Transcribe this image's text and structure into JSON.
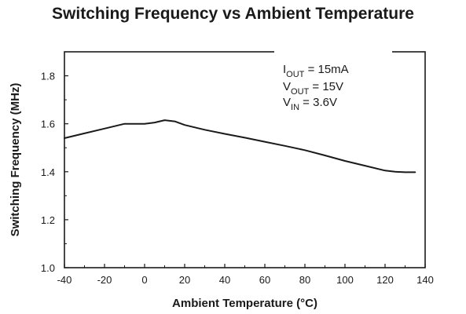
{
  "chart_data": {
    "type": "line",
    "title": "Switching Frequency vs Ambient Temperature",
    "xlabel": "Ambient Temperature (°C)",
    "ylabel": "Switching Frequency (MHz)",
    "xlim": [
      -40,
      140
    ],
    "ylim": [
      1.0,
      1.9
    ],
    "xticks": [
      -40,
      -20,
      0,
      20,
      40,
      60,
      80,
      100,
      120,
      140
    ],
    "yticks": [
      1.0,
      1.2,
      1.4,
      1.6,
      1.8
    ],
    "xtick_labels": [
      "-40",
      "-20",
      "0",
      "20",
      "40",
      "60",
      "80",
      "100",
      "120",
      "140"
    ],
    "ytick_labels": [
      "1.0",
      "1.2",
      "1.4",
      "1.6",
      "1.8"
    ],
    "grid": false,
    "series": [
      {
        "x": [
          -40,
          -30,
          -20,
          -10,
          0,
          5,
          10,
          15,
          20,
          30,
          40,
          50,
          60,
          70,
          80,
          90,
          100,
          110,
          120,
          125,
          130,
          135
        ],
        "y": [
          1.54,
          1.56,
          1.58,
          1.6,
          1.6,
          1.605,
          1.615,
          1.61,
          1.595,
          1.575,
          1.558,
          1.542,
          1.525,
          1.508,
          1.49,
          1.468,
          1.445,
          1.425,
          1.405,
          1.4,
          1.398,
          1.398
        ]
      }
    ],
    "annotations": [
      {
        "main": "I",
        "sub": "OUT",
        "rest": " = 15mA"
      },
      {
        "main": "V",
        "sub": "OUT",
        "rest": " = 15V"
      },
      {
        "main": "V",
        "sub": "IN",
        "rest": " = 3.6V"
      }
    ]
  }
}
